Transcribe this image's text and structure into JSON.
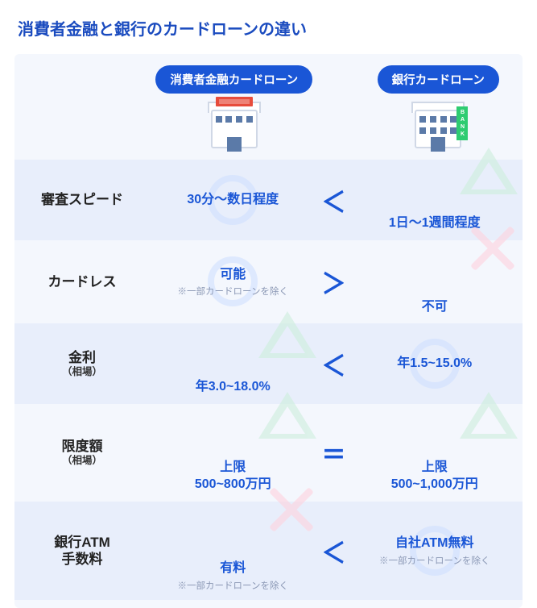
{
  "title": "消費者金融と銀行のカードローンの違い",
  "colors": {
    "accent": "#1a56d6",
    "panel_bg": "#f4f7fd",
    "row_alt_bg": "#e8eefb",
    "note_text": "#8b98b5",
    "circle": "#cfe0ff",
    "triangle": "#cdeedd",
    "cross": "#ffd2de"
  },
  "columns": {
    "consumer": {
      "label": "消費者金融カードローン",
      "icon": "consumer-building-icon"
    },
    "bank": {
      "label": "銀行カードローン",
      "icon": "bank-building-icon"
    }
  },
  "comparator_glyphs": {
    "lt": "＜",
    "gt": "＞",
    "eq": "＝"
  },
  "rating_glyphs": {
    "circle": {
      "meaning": "good",
      "shape": "circle",
      "color": "#cfe0ff"
    },
    "triangle": {
      "meaning": "ok",
      "shape": "triangle",
      "color": "#cdeedd"
    },
    "cross": {
      "meaning": "bad",
      "shape": "cross",
      "color": "#ffd2de"
    }
  },
  "rows": [
    {
      "label": "審査スピード",
      "sublabel": "",
      "consumer": {
        "text": "30分～数日程度",
        "note": "",
        "rating": "circle"
      },
      "comparator": "lt",
      "bank": {
        "text": "1日～1週間程度",
        "note": "",
        "rating": "triangle"
      }
    },
    {
      "label": "カードレス",
      "sublabel": "",
      "consumer": {
        "text": "可能",
        "note": "※一部カードローンを除く",
        "rating": "circle"
      },
      "comparator": "gt",
      "bank": {
        "text": "不可",
        "note": "",
        "rating": "cross"
      }
    },
    {
      "label": "金利",
      "sublabel": "（相場）",
      "consumer": {
        "text": "年3.0~18.0%",
        "note": "",
        "rating": "triangle"
      },
      "comparator": "lt",
      "bank": {
        "text": "年1.5~15.0%",
        "note": "",
        "rating": "circle"
      }
    },
    {
      "label": "限度額",
      "sublabel": "（相場）",
      "consumer": {
        "text": "上限\n500~800万円",
        "note": "",
        "rating": "triangle"
      },
      "comparator": "eq",
      "bank": {
        "text": "上限\n500~1,000万円",
        "note": "",
        "rating": "triangle"
      }
    },
    {
      "label": "銀行ATM\n手数料",
      "sublabel": "",
      "consumer": {
        "text": "有料",
        "note": "※一部カードローンを除く",
        "rating": "cross"
      },
      "comparator": "lt",
      "bank": {
        "text": "自社ATM無料",
        "note": "※一部カードローンを除く",
        "rating": "circle"
      }
    }
  ]
}
